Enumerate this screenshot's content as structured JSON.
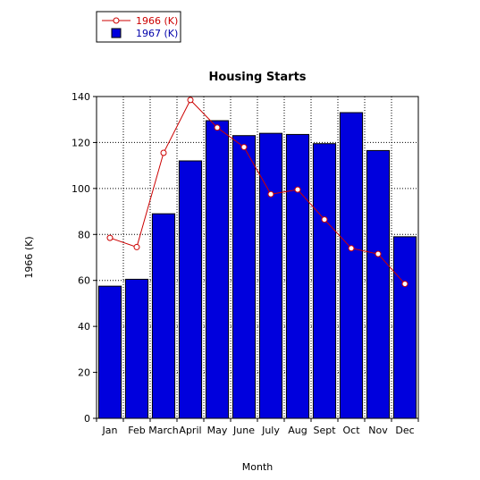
{
  "chart_data": {
    "type": "bar",
    "title": "Housing Starts",
    "xlabel": "Month",
    "ylabel": "1966 (K)",
    "categories": [
      "Jan",
      "Feb",
      "March",
      "April",
      "May",
      "June",
      "July",
      "Aug",
      "Sept",
      "Oct",
      "Nov",
      "Dec"
    ],
    "ylim": [
      0,
      140
    ],
    "yticks": [
      0,
      20,
      40,
      60,
      80,
      100,
      120,
      140
    ],
    "grid": true,
    "legend_position": "top-left",
    "series": [
      {
        "name": "1966 (K)",
        "type": "line",
        "color": "#cc0000",
        "values": [
          78.5,
          74.5,
          115.5,
          138.5,
          126.5,
          118,
          97.5,
          99.5,
          86.5,
          74,
          71.5,
          58.5
        ]
      },
      {
        "name": "1967 (K)",
        "type": "bar",
        "color": "#0000dd",
        "values": [
          57.5,
          60.5,
          89,
          112,
          129.5,
          123,
          124,
          123.5,
          119.5,
          133,
          116.5,
          79
        ]
      }
    ]
  }
}
